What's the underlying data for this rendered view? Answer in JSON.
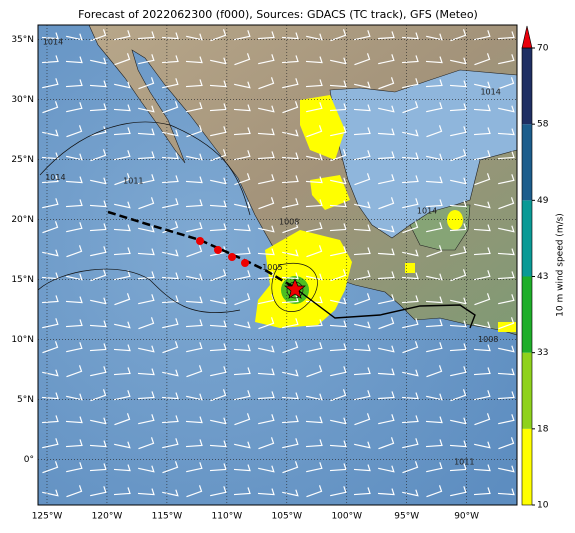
{
  "title": "Forecast of 2022062300 (f000), Sources: GDACS (TC track), GFS (Meteo)",
  "map": {
    "lonlim": [
      -125.75,
      -85.8
    ],
    "latlim": [
      -3.8,
      36.2
    ],
    "lonticks": [
      {
        "value": -125,
        "label": "125°W"
      },
      {
        "value": -120,
        "label": "120°W"
      },
      {
        "value": -115,
        "label": "115°W"
      },
      {
        "value": -110,
        "label": "110°W"
      },
      {
        "value": -105,
        "label": "105°W"
      },
      {
        "value": -100,
        "label": "100°W"
      },
      {
        "value": -95,
        "label": "95°W"
      },
      {
        "value": -90,
        "label": "90°W"
      }
    ],
    "latticks": [
      {
        "value": 35,
        "label": "35°N"
      },
      {
        "value": 30,
        "label": "30°N"
      },
      {
        "value": 25,
        "label": "25°N"
      },
      {
        "value": 20,
        "label": "20°N"
      },
      {
        "value": 15,
        "label": "15°N"
      },
      {
        "value": 10,
        "label": "10°N"
      },
      {
        "value": 5,
        "label": "5°N"
      },
      {
        "value": 0,
        "label": "0°"
      }
    ],
    "isobar_labels": [
      {
        "text": "1014",
        "lon": -124.5,
        "lat": 34.8
      },
      {
        "text": "1014",
        "lon": -124.3,
        "lat": 23.5
      },
      {
        "text": "1011",
        "lon": -117.8,
        "lat": 23.2
      },
      {
        "text": "1008",
        "lon": -104.8,
        "lat": 19.8
      },
      {
        "text": "1014",
        "lon": -93.3,
        "lat": 20.7
      },
      {
        "text": "1005",
        "lon": -106.2,
        "lat": 16.0
      },
      {
        "text": "1008",
        "lon": -88.2,
        "lat": 10.0
      },
      {
        "text": "1011",
        "lon": -90.2,
        "lat": -0.2
      },
      {
        "text": "1014",
        "lon": -88.0,
        "lat": 30.6
      }
    ]
  },
  "colorbar": {
    "label": "10 m wind speed (m/s)",
    "ticks": [
      10,
      18,
      33,
      43,
      49,
      58,
      70
    ],
    "colors": [
      "#ffff00",
      "#8fd21c",
      "#1fae2a",
      "#0a9a96",
      "#1c5d8c",
      "#1f2f63"
    ],
    "extend_color": "#e8000b"
  }
}
